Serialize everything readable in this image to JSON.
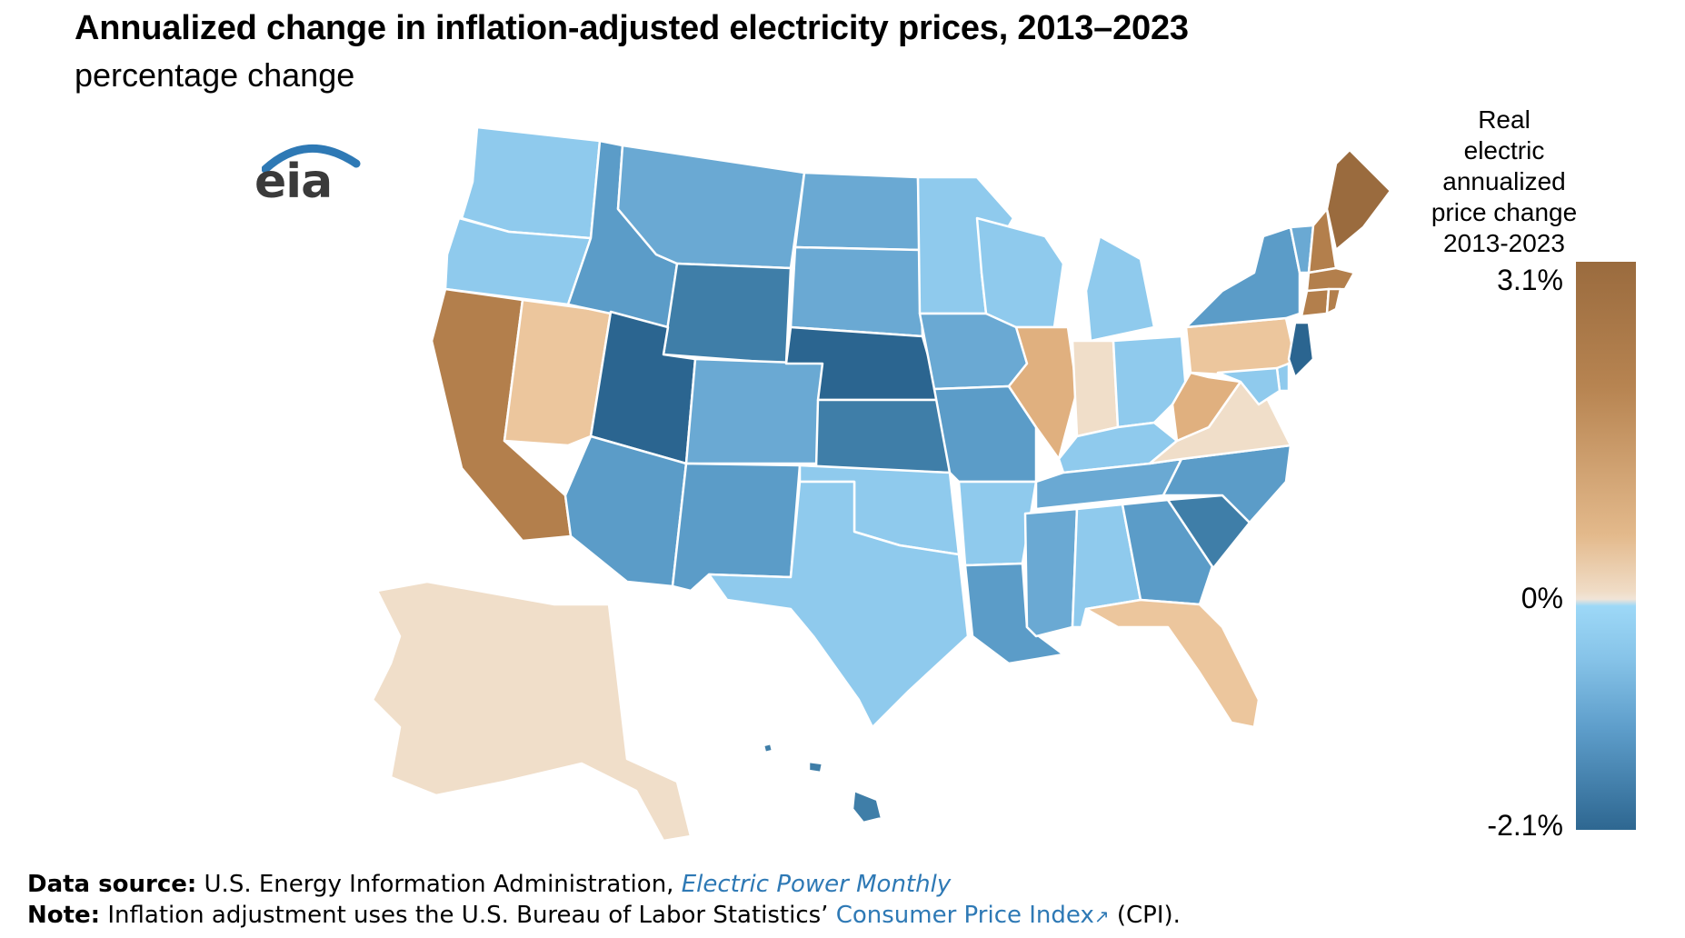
{
  "title": "Annualized change in inflation-adjusted electricity prices, 2013–2023",
  "subtitle": "percentage change",
  "logo_text": "eia",
  "legend": {
    "title_lines": [
      "Real",
      "electric annualized",
      "price change",
      "2013-2023"
    ],
    "max_label": "3.1%",
    "zero_label": "0%",
    "min_label": "-2.1%",
    "max": 3.1,
    "min": -2.1
  },
  "footer": {
    "source_label": "Data source:",
    "source_text": "U.S. Energy Information Administration,",
    "source_link": "Electric Power Monthly",
    "note_label": "Note:",
    "note_text": "Inflation adjustment uses the U.S. Bureau of Labor Statistics’",
    "note_link": "Consumer Price Index",
    "note_tail": "(CPI)."
  },
  "colors": {
    "dark_brown": "#9a6b3e",
    "mid_brown": "#b37f4c",
    "tan": "#e0b07f",
    "light_tan": "#ecc69d",
    "cream": "#f0dec9",
    "light_blue": "#8fcaed",
    "mid_blue": "#6aa9d3",
    "blue": "#5b9cc8",
    "dark_blue": "#3f7ea8",
    "navy": "#2b6590",
    "link": "#2e79b5"
  },
  "states": [
    {
      "name": "WA",
      "category": "light_blue"
    },
    {
      "name": "OR",
      "category": "light_blue"
    },
    {
      "name": "CA",
      "category": "mid_brown"
    },
    {
      "name": "NV",
      "category": "light_tan"
    },
    {
      "name": "ID",
      "category": "blue"
    },
    {
      "name": "MT",
      "category": "mid_blue"
    },
    {
      "name": "WY",
      "category": "dark_blue"
    },
    {
      "name": "UT",
      "category": "navy"
    },
    {
      "name": "AZ",
      "category": "blue"
    },
    {
      "name": "CO",
      "category": "mid_blue"
    },
    {
      "name": "NM",
      "category": "blue"
    },
    {
      "name": "ND",
      "category": "mid_blue"
    },
    {
      "name": "SD",
      "category": "mid_blue"
    },
    {
      "name": "NE",
      "category": "navy"
    },
    {
      "name": "KS",
      "category": "dark_blue"
    },
    {
      "name": "OK",
      "category": "light_blue"
    },
    {
      "name": "TX",
      "category": "light_blue"
    },
    {
      "name": "MN",
      "category": "light_blue"
    },
    {
      "name": "IA",
      "category": "mid_blue"
    },
    {
      "name": "MO",
      "category": "blue"
    },
    {
      "name": "AR",
      "category": "light_blue"
    },
    {
      "name": "LA",
      "category": "blue"
    },
    {
      "name": "WI",
      "category": "light_blue"
    },
    {
      "name": "IL",
      "category": "tan"
    },
    {
      "name": "MI",
      "category": "light_blue"
    },
    {
      "name": "IN",
      "category": "cream"
    },
    {
      "name": "OH",
      "category": "light_blue"
    },
    {
      "name": "KY",
      "category": "light_blue"
    },
    {
      "name": "TN",
      "category": "mid_blue"
    },
    {
      "name": "MS",
      "category": "mid_blue"
    },
    {
      "name": "AL",
      "category": "light_blue"
    },
    {
      "name": "GA",
      "category": "blue"
    },
    {
      "name": "FL",
      "category": "light_tan"
    },
    {
      "name": "SC",
      "category": "dark_blue"
    },
    {
      "name": "NC",
      "category": "blue"
    },
    {
      "name": "VA",
      "category": "cream"
    },
    {
      "name": "WV",
      "category": "tan"
    },
    {
      "name": "PA",
      "category": "light_tan"
    },
    {
      "name": "NY",
      "category": "blue"
    },
    {
      "name": "VT",
      "category": "mid_blue"
    },
    {
      "name": "NH",
      "category": "mid_brown"
    },
    {
      "name": "ME",
      "category": "dark_brown"
    },
    {
      "name": "MA",
      "category": "mid_brown"
    },
    {
      "name": "CT",
      "category": "mid_brown"
    },
    {
      "name": "RI",
      "category": "mid_brown"
    },
    {
      "name": "NJ",
      "category": "navy"
    },
    {
      "name": "DE",
      "category": "light_blue"
    },
    {
      "name": "MD",
      "category": "light_blue"
    },
    {
      "name": "AK",
      "category": "cream"
    },
    {
      "name": "HI",
      "category": "dark_blue"
    }
  ]
}
